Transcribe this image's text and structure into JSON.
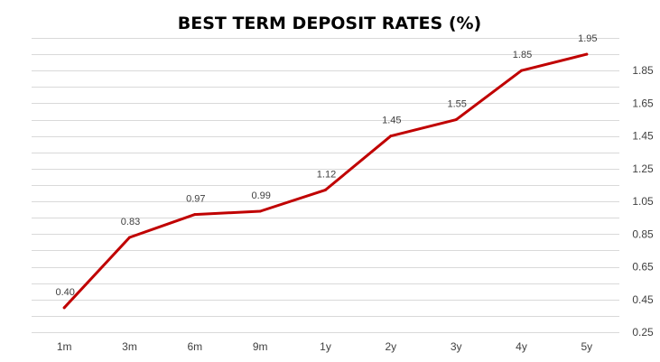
{
  "chart_data": {
    "type": "line",
    "title": "BEST TERM DEPOSIT RATES (%)",
    "xlabel": "",
    "ylabel": "",
    "categories": [
      "1m",
      "3m",
      "6m",
      "9m",
      "1y",
      "2y",
      "3y",
      "4y",
      "5y"
    ],
    "series": [
      {
        "values": [
          0.4,
          0.83,
          0.97,
          0.99,
          1.12,
          1.45,
          1.55,
          1.85,
          1.95
        ],
        "labels": [
          "0.40",
          "0.83",
          "0.97",
          "0.99",
          "1.12",
          "1.45",
          "1.55",
          "1.85",
          "1.95"
        ],
        "color": "#c00000"
      }
    ],
    "ylim": [
      0.25,
      2.05
    ],
    "yticks": [
      "0.25",
      "0.45",
      "0.65",
      "0.85",
      "1.05",
      "1.25",
      "1.45",
      "1.65",
      "1.85"
    ],
    "yaxis_position": "right",
    "grid": true,
    "legend": "none"
  }
}
